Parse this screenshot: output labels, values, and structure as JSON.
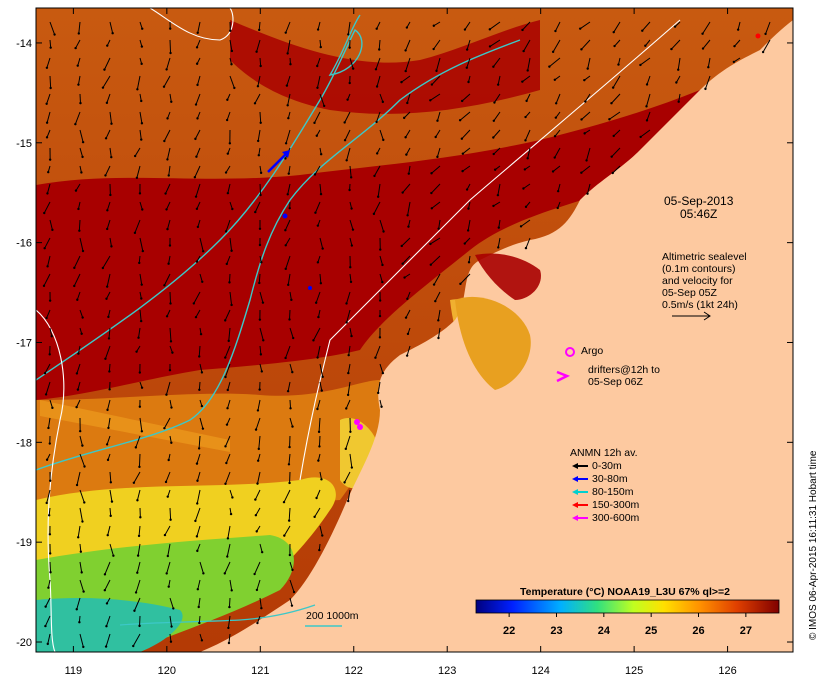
{
  "map": {
    "lon_ticks": [
      "119",
      "120",
      "121",
      "122",
      "123",
      "124",
      "125",
      "126"
    ],
    "lat_ticks": [
      "-14",
      "-15",
      "-16",
      "-17",
      "-18",
      "-19",
      "-20"
    ],
    "lon_range": [
      118.6,
      126.7
    ],
    "lat_range": [
      -20.1,
      -13.65
    ]
  },
  "annotations": {
    "date": "05-Sep-2013",
    "time": "05:46Z",
    "altimetry_lines": [
      "Altimetric sealevel",
      "(0.1m contours)",
      "and velocity for",
      "05-Sep 05Z",
      "0.5m/s (1kt 24h)"
    ],
    "argo_label": "Argo",
    "drifters_lines": [
      "drifters@12h to",
      "05-Sep 06Z"
    ],
    "depth_scale_label": "200  1000m",
    "credit": "© IMOS 06-Apr-2015 16:11:31 Hobart time"
  },
  "anmn_legend": {
    "title": "ANMN 12h av.",
    "items": [
      {
        "label": "0-30m",
        "color": "#000000"
      },
      {
        "label": "30-80m",
        "color": "#0000ff"
      },
      {
        "label": "80-150m",
        "color": "#00d0d0"
      },
      {
        "label": "150-300m",
        "color": "#ff0000"
      },
      {
        "label": "300-600m",
        "color": "#ff00ff"
      }
    ]
  },
  "colorbar": {
    "title": "Temperature (°C) NOAA19_L3U 67% ql>=2",
    "ticks": [
      "22",
      "23",
      "24",
      "25",
      "26",
      "27"
    ],
    "range": [
      21.3,
      27.7
    ]
  },
  "colors": {
    "land": "#fdc9a0",
    "sea_hot": "#a80000",
    "sea_warm": "#cc5500",
    "contour_cyan": "#3cc8c8",
    "argo": "#ff00ff"
  }
}
